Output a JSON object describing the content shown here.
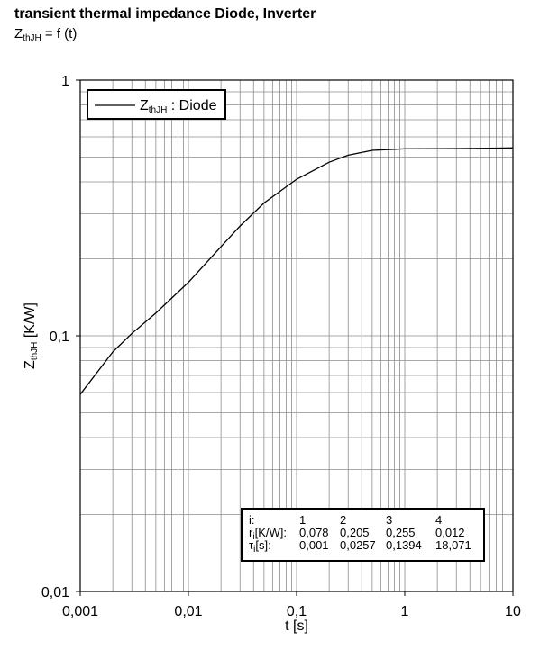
{
  "chart_data": {
    "type": "line",
    "title": "transient thermal impedance Diode, Inverter",
    "subtitle": {
      "main": "Z",
      "sub": "thJH",
      "rest": " = f (t)"
    },
    "x_label": "t [s]",
    "y_label": {
      "main": "Z",
      "sub": "thJH",
      "rest": " [K/W]"
    },
    "log_x": true,
    "log_y": true,
    "grid": true,
    "legend": "upper left",
    "xlim": [
      0.001,
      10
    ],
    "ylim": [
      0.01,
      1
    ],
    "xticks": [
      {
        "value": 0.001,
        "label": "0,001"
      },
      {
        "value": 0.01,
        "label": "0,01"
      },
      {
        "value": 0.1,
        "label": "0,1"
      },
      1,
      10
    ],
    "yticks": [
      {
        "value": 0.01,
        "label": "0,01"
      },
      {
        "value": 0.1,
        "label": "0,1"
      },
      1
    ],
    "x": [
      0.001,
      0.002,
      0.003,
      0.005,
      0.01,
      0.02,
      0.03,
      0.05,
      0.1,
      0.2,
      0.3,
      0.5,
      1,
      2,
      5,
      10
    ],
    "series": [
      {
        "name": {
          "main": "Z",
          "sub": "thJH",
          "rest": " : Diode"
        },
        "color": "#000000",
        "values": [
          0.059,
          0.0865,
          0.1021,
          0.1227,
          0.1618,
          0.223,
          0.2686,
          0.3306,
          0.4095,
          0.4774,
          0.5086,
          0.5312,
          0.5386,
          0.5393,
          0.5409,
          0.543
        ]
      }
    ],
    "table": {
      "rows": [
        {
          "label": {
            "main": "i:"
          },
          "cells": [
            "1",
            "2",
            "3",
            "4"
          ]
        },
        {
          "label": {
            "main": "r",
            "sub": "i",
            "rest": "[K/W]:"
          },
          "cells": [
            "0,078",
            "0,205",
            "0,255",
            "0,012"
          ]
        },
        {
          "label": {
            "main": "τ",
            "sub": "i",
            "rest": "[s]:"
          },
          "cells": [
            "0,001",
            "0,0257",
            "0,1394",
            "18,071"
          ]
        }
      ]
    }
  }
}
